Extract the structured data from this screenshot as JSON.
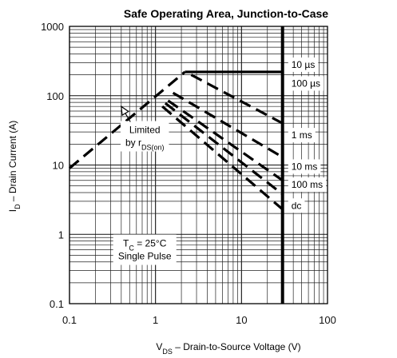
{
  "chart_data": {
    "type": "line",
    "title": "Safe Operating Area, Junction-to-Case",
    "xscale": "log",
    "yscale": "log",
    "xlim": [
      0.1,
      100
    ],
    "ylim": [
      0.1,
      1000
    ],
    "grid": true,
    "x_ticks": [
      {
        "value": 0.1,
        "label": "0.1"
      },
      {
        "value": 1,
        "label": "1"
      },
      {
        "value": 10,
        "label": "10"
      },
      {
        "value": 100,
        "label": "100"
      }
    ],
    "y_ticks": [
      {
        "value": 0.1,
        "label": "0.1"
      },
      {
        "value": 1,
        "label": "1"
      },
      {
        "value": 10,
        "label": "10"
      },
      {
        "value": 100,
        "label": "100"
      },
      {
        "value": 1000,
        "label": "1000"
      }
    ],
    "xlabel": {
      "sym": "V",
      "sub": "DS",
      "text": " – Drain-to-Source Voltage (V)"
    },
    "ylabel": {
      "sym": "I",
      "sub": "D",
      "text": " – Drain Current (A)"
    },
    "series": [
      {
        "name": "10 µs",
        "style": "solid",
        "x": [
          2.2,
          30
        ],
        "y": [
          220,
          220
        ]
      },
      {
        "name": "100 µs",
        "style": "dashed",
        "x": [
          2.6,
          30
        ],
        "y": [
          200,
          40
        ]
      },
      {
        "name": "1 ms",
        "style": "dashed",
        "x": [
          1.6,
          30
        ],
        "y": [
          110,
          13
        ]
      },
      {
        "name": "10 ms",
        "style": "dashed",
        "x": [
          1.4,
          30
        ],
        "y": [
          85,
          6
        ]
      },
      {
        "name": "100 ms",
        "style": "dashed",
        "x": [
          1.3,
          30
        ],
        "y": [
          78,
          3.8
        ]
      },
      {
        "name": "dc",
        "style": "dashed",
        "x": [
          1.2,
          30
        ],
        "y": [
          70,
          2.3
        ]
      },
      {
        "name": "",
        "role": "rds_on_limit",
        "style": "dashed",
        "x": [
          0.1,
          2.2
        ],
        "y": [
          9,
          220
        ]
      },
      {
        "name": "",
        "role": "vds_limit",
        "style": "solid",
        "x": [
          30,
          30
        ],
        "y": [
          0.1,
          1000
        ]
      }
    ],
    "curve_labels": [
      {
        "series": "10 µs",
        "text": "10 µs",
        "x": 38,
        "y": 280
      },
      {
        "series": "100 µs",
        "text": "100 µs",
        "x": 38,
        "y": 150
      },
      {
        "series": "1 ms",
        "text": "1 ms",
        "x": 38,
        "y": 27
      },
      {
        "series": "10 ms",
        "text": "10 ms",
        "x": 38,
        "y": 9.5
      },
      {
        "series": "100 ms",
        "text": "100 ms",
        "x": 38,
        "y": 5.2
      },
      {
        "series": "dc",
        "text": "dc",
        "x": 38,
        "y": 2.6
      }
    ],
    "annotations": [
      {
        "id": "limited",
        "lines": [
          {
            "text": "Limited"
          },
          {
            "text": "by r",
            "sub": "DS(on)"
          }
        ],
        "x": 0.75,
        "y": 26,
        "arrow_to": {
          "x": 0.4,
          "y": 70
        }
      },
      {
        "id": "conditions",
        "lines": [
          {
            "text": "T",
            "sub": "C",
            "tail": " = 25°C"
          },
          {
            "text": "Single Pulse"
          }
        ],
        "x": 0.75,
        "y": 0.6
      }
    ]
  }
}
